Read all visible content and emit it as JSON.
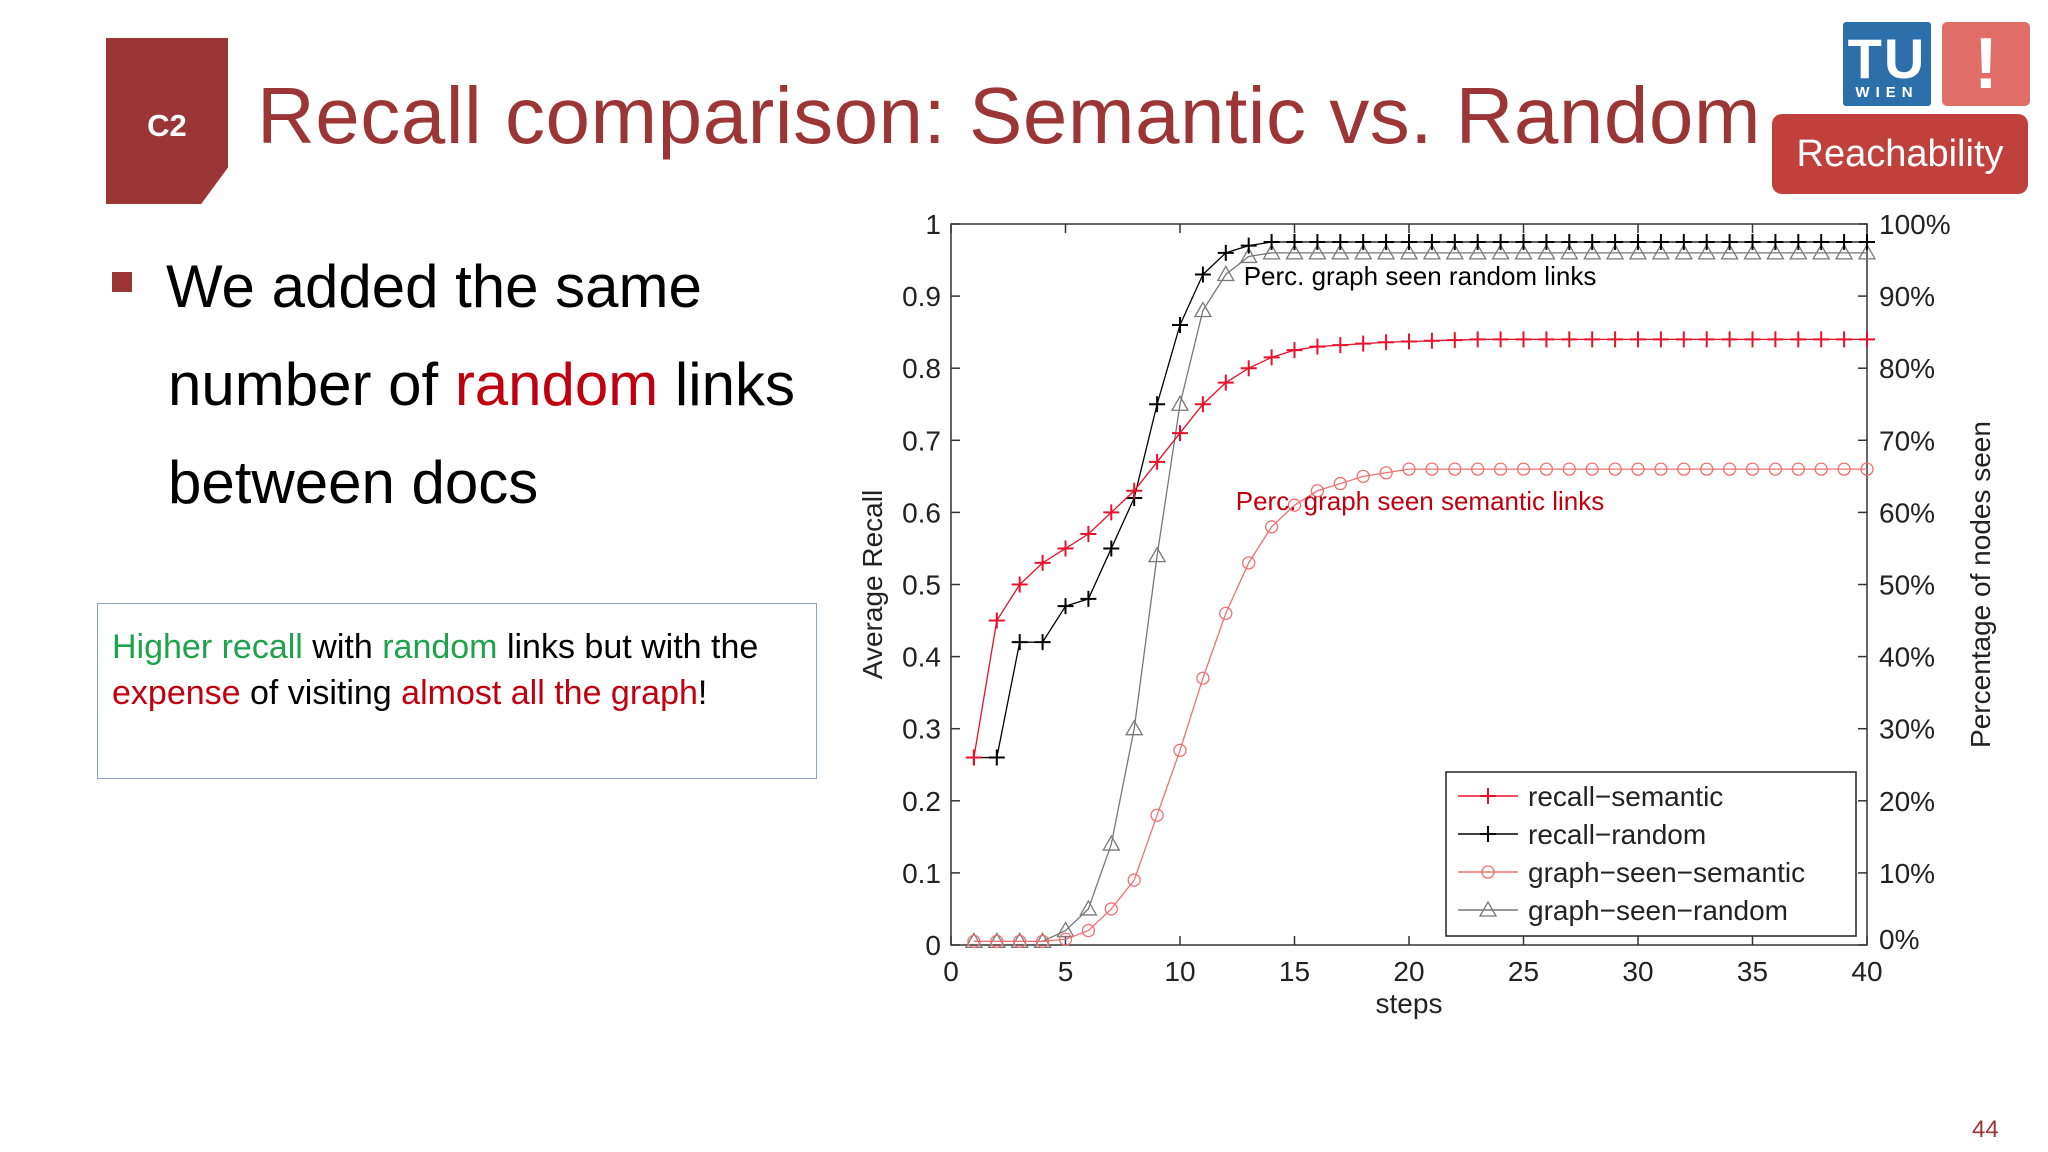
{
  "slide": {
    "section_tag": "C2",
    "title": "Recall comparison: Semantic vs. Random",
    "logo_tu": "TU",
    "logo_wien": "WIEN",
    "logo_excl": "!",
    "badge": "Reachability",
    "page_number": "44"
  },
  "bullet": {
    "part1": "We added the same",
    "part2": "number of ",
    "part3": "random",
    "part4": " links",
    "part5": "between docs"
  },
  "callout": {
    "p1": "Higher recall",
    "p2": " with ",
    "p3": "random",
    "p4": " links but with the",
    "p5": "expense",
    "p6": " of visiting ",
    "p7": "almost all the graph",
    "p8": "!"
  },
  "colors": {
    "accent": "#9c3535",
    "red": "#c0000f",
    "green": "#1ea24b",
    "badge": "#c0413c",
    "tu_blue": "#2d6fab"
  },
  "chart_data": {
    "type": "line",
    "xlabel": "steps",
    "ylabel": "Average Recall",
    "ylabel_right": "Percentage of nodes seen",
    "xlim": [
      0,
      40
    ],
    "ylim": [
      0,
      1
    ],
    "x_ticks": [
      "0",
      "5",
      "10",
      "15",
      "20",
      "25",
      "30",
      "35",
      "40"
    ],
    "y_ticks": [
      "0",
      "0.1",
      "0.2",
      "0.3",
      "0.4",
      "0.5",
      "0.6",
      "0.7",
      "0.8",
      "0.9",
      "1"
    ],
    "y_ticks_right": [
      "0%",
      "10%",
      "20%",
      "30%",
      "40%",
      "50%",
      "60%",
      "70%",
      "80%",
      "90%",
      "100%"
    ],
    "annotations": [
      {
        "text": "Perc. graph seen random links",
        "color": "#000000"
      },
      {
        "text": "Perc. graph seen semantic links",
        "color": "#c0000f"
      }
    ],
    "legend_position": "bottom-right",
    "x": [
      1,
      2,
      3,
      4,
      5,
      6,
      7,
      8,
      9,
      10,
      11,
      12,
      13,
      14,
      15,
      16,
      17,
      18,
      19,
      20,
      21,
      22,
      23,
      24,
      25,
      26,
      27,
      28,
      29,
      30,
      31,
      32,
      33,
      34,
      35,
      36,
      37,
      38,
      39,
      40
    ],
    "series": [
      {
        "name": "recall−semantic",
        "color": "#e8102a",
        "marker": "plus",
        "values": [
          0.26,
          0.45,
          0.5,
          0.53,
          0.55,
          0.57,
          0.6,
          0.63,
          0.67,
          0.71,
          0.75,
          0.78,
          0.8,
          0.815,
          0.825,
          0.83,
          0.832,
          0.834,
          0.836,
          0.837,
          0.838,
          0.839,
          0.84,
          0.84,
          0.84,
          0.84,
          0.84,
          0.84,
          0.84,
          0.84,
          0.84,
          0.84,
          0.84,
          0.84,
          0.84,
          0.84,
          0.84,
          0.84,
          0.84,
          0.84
        ]
      },
      {
        "name": "recall−random",
        "color": "#000000",
        "marker": "plus",
        "values": [
          0.26,
          0.26,
          0.42,
          0.42,
          0.47,
          0.48,
          0.55,
          0.62,
          0.75,
          0.86,
          0.93,
          0.96,
          0.97,
          0.975,
          0.975,
          0.975,
          0.975,
          0.975,
          0.975,
          0.975,
          0.975,
          0.975,
          0.975,
          0.975,
          0.975,
          0.975,
          0.975,
          0.975,
          0.975,
          0.975,
          0.975,
          0.975,
          0.975,
          0.975,
          0.975,
          0.975,
          0.975,
          0.975,
          0.975,
          0.975
        ]
      },
      {
        "name": "graph−seen−semantic",
        "color": "#f07070",
        "marker": "circle",
        "values": [
          0.005,
          0.005,
          0.005,
          0.005,
          0.008,
          0.02,
          0.05,
          0.09,
          0.18,
          0.27,
          0.37,
          0.46,
          0.53,
          0.58,
          0.61,
          0.63,
          0.64,
          0.65,
          0.655,
          0.66,
          0.66,
          0.66,
          0.66,
          0.66,
          0.66,
          0.66,
          0.66,
          0.66,
          0.66,
          0.66,
          0.66,
          0.66,
          0.66,
          0.66,
          0.66,
          0.66,
          0.66,
          0.66,
          0.66,
          0.66
        ]
      },
      {
        "name": "graph−seen−random",
        "color": "#777777",
        "marker": "triangle",
        "values": [
          0.005,
          0.005,
          0.005,
          0.005,
          0.02,
          0.05,
          0.14,
          0.3,
          0.54,
          0.75,
          0.88,
          0.93,
          0.955,
          0.96,
          0.96,
          0.96,
          0.96,
          0.96,
          0.96,
          0.96,
          0.96,
          0.96,
          0.96,
          0.96,
          0.96,
          0.96,
          0.96,
          0.96,
          0.96,
          0.96,
          0.96,
          0.96,
          0.96,
          0.96,
          0.96,
          0.96,
          0.96,
          0.96,
          0.96,
          0.96
        ]
      }
    ]
  }
}
